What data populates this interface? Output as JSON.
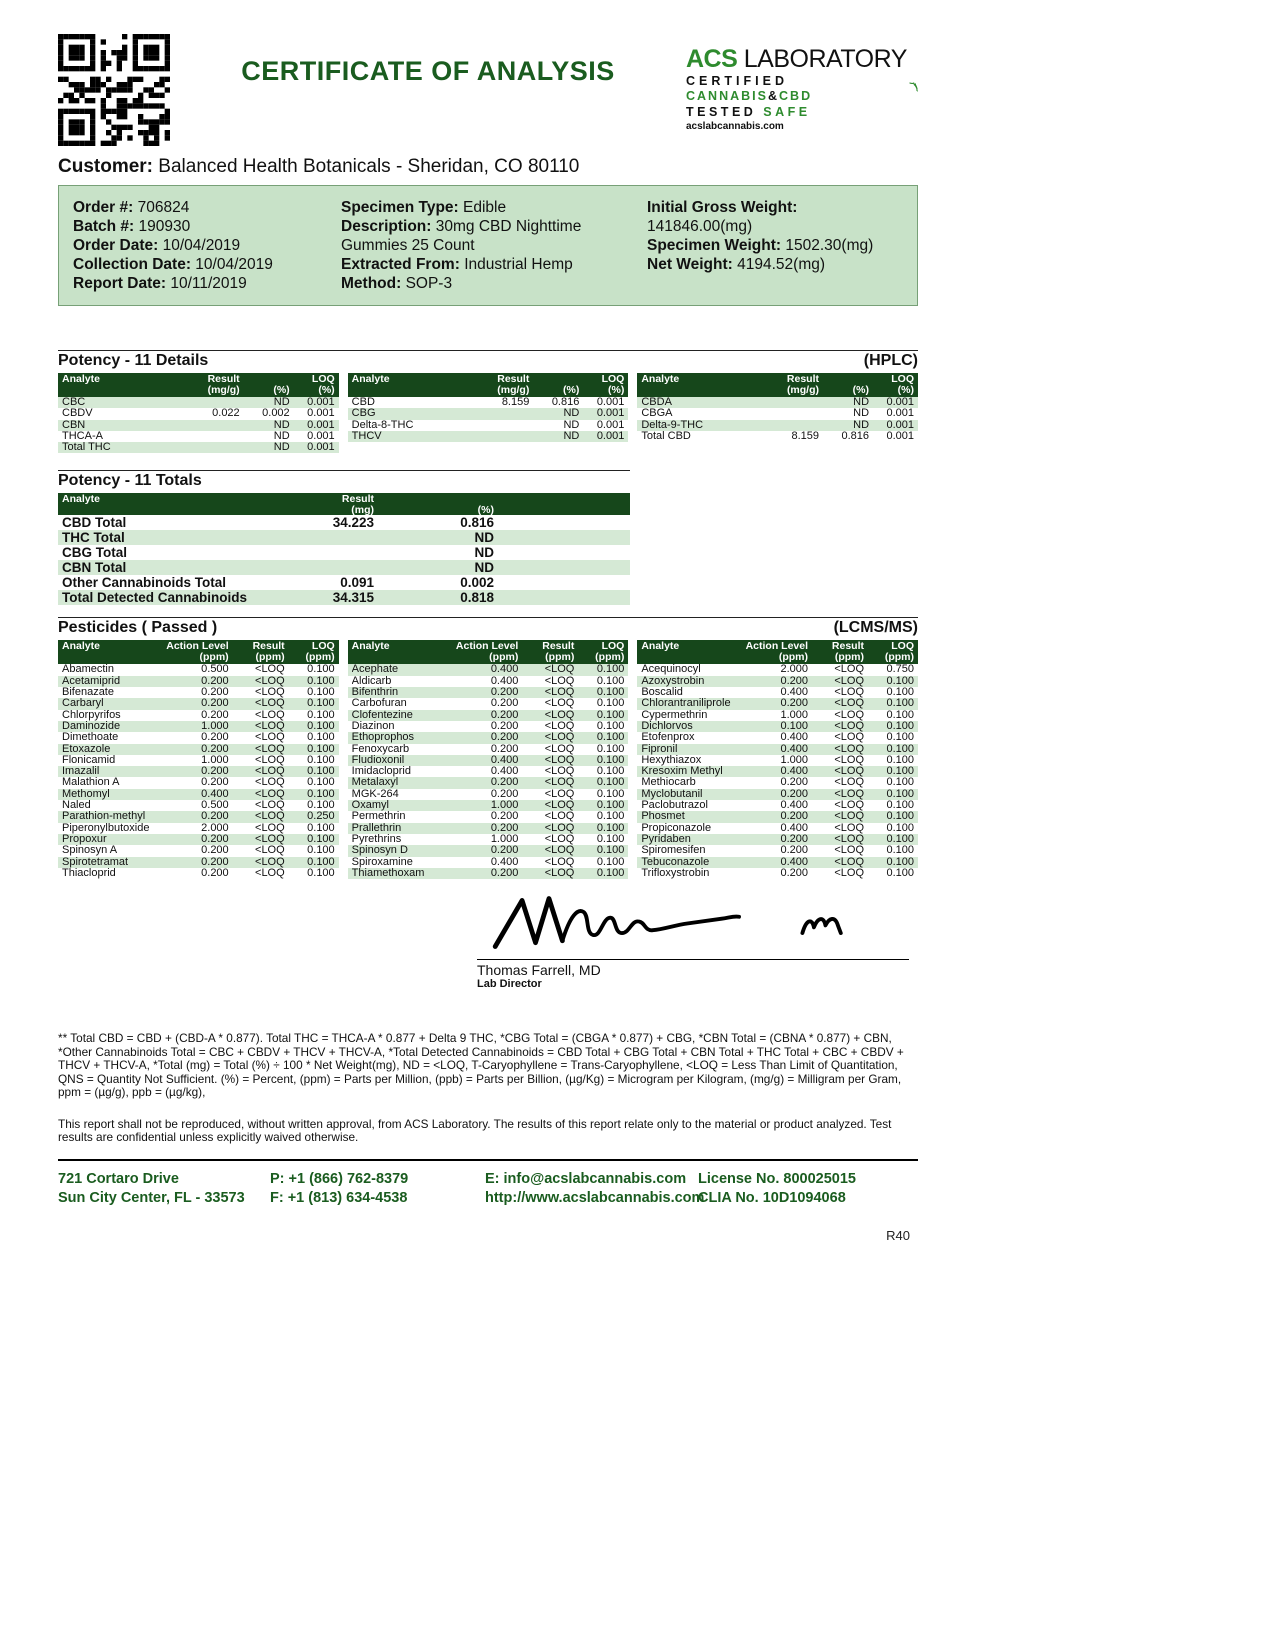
{
  "colors": {
    "accent_green": "#1a5c1f",
    "logo_green": "#2e8b2e",
    "table_header_green": "#16471b",
    "row_green": "#d5e9d5",
    "box_green": "#c8e2c8"
  },
  "header": {
    "title": "CERTIFICATE OF ANALYSIS"
  },
  "logo": {
    "acs": "ACS",
    "laboratory": "LABORATORY",
    "certified": "CERTIFIED",
    "cannabis": "CANNABIS",
    "amp": "&",
    "cbd": "CBD",
    "tested": "TESTED",
    "safe": "SAFE",
    "site": "acslabcannabis.com"
  },
  "customer": {
    "label": "Customer:",
    "value": "Balanced Health Botanicals  - Sheridan, CO 80110"
  },
  "order_info": {
    "columns": [
      [
        {
          "label": "Order #:",
          "value": "706824"
        },
        {
          "label": "Batch #:",
          "value": "190930"
        },
        {
          "label": "Order Date:",
          "value": "10/04/2019"
        },
        {
          "label": "Collection Date:",
          "value": "10/04/2019"
        },
        {
          "label": "Report Date:",
          "value": "10/11/2019"
        }
      ],
      [
        {
          "label": "Specimen Type:",
          "value": "Edible"
        },
        {
          "label": "Description:",
          "value": "30mg CBD Nighttime Gummies 25 Count"
        },
        {
          "label": "Extracted From:",
          "value": "Industrial Hemp"
        },
        {
          "label": "Method:",
          "value": "SOP-3"
        }
      ],
      [
        {
          "label": "Initial Gross Weight:",
          "value": "141846.00(mg)"
        },
        {
          "label": "Specimen Weight:",
          "value": "1502.30(mg)"
        },
        {
          "label": "Net Weight:",
          "value": "4194.52(mg)"
        }
      ]
    ]
  },
  "potency_details": {
    "title": "Potency - 11 Details",
    "method": "(HPLC)",
    "headers": [
      {
        "t": "Analyte"
      },
      {
        "t": "Result",
        "u": "(mg/g)"
      },
      {
        "t": "(%)"
      },
      {
        "t": "LOQ",
        "u": "(%)"
      }
    ],
    "columns": [
      {
        "first_shaded": true,
        "rows": [
          [
            "CBC",
            "",
            "ND",
            "0.001"
          ],
          [
            "CBDV",
            "0.022",
            "0.002",
            "0.001"
          ],
          [
            "CBN",
            "",
            "ND",
            "0.001"
          ],
          [
            "THCA-A",
            "",
            "ND",
            "0.001"
          ],
          [
            "Total THC",
            "",
            "ND",
            "0.001"
          ]
        ]
      },
      {
        "first_shaded": false,
        "rows": [
          [
            "CBD",
            "8.159",
            "0.816",
            "0.001"
          ],
          [
            "CBG",
            "",
            "ND",
            "0.001"
          ],
          [
            "Delta-8-THC",
            "",
            "ND",
            "0.001"
          ],
          [
            "THCV",
            "",
            "ND",
            "0.001"
          ]
        ]
      },
      {
        "first_shaded": true,
        "rows": [
          [
            "CBDA",
            "",
            "ND",
            "0.001"
          ],
          [
            "CBGA",
            "",
            "ND",
            "0.001"
          ],
          [
            "Delta-9-THC",
            "",
            "ND",
            "0.001"
          ],
          [
            "Total CBD",
            "8.159",
            "0.816",
            "0.001"
          ]
        ]
      }
    ]
  },
  "potency_totals": {
    "title": "Potency - 11 Totals",
    "headers": [
      {
        "t": "Analyte"
      },
      {
        "t": "Result",
        "u": "(mg)"
      },
      {
        "t": "(%)"
      },
      {
        "t": ""
      }
    ],
    "first_shaded": false,
    "rows": [
      [
        "CBD Total",
        "34.223",
        "0.816",
        ""
      ],
      [
        "THC Total",
        "",
        "ND",
        ""
      ],
      [
        "CBG Total",
        "",
        "ND",
        ""
      ],
      [
        "CBN Total",
        "",
        "ND",
        ""
      ],
      [
        "Other Cannabinoids Total",
        "0.091",
        "0.002",
        ""
      ],
      [
        "Total Detected Cannabinoids",
        "34.315",
        "0.818",
        ""
      ]
    ]
  },
  "pesticides": {
    "title": "Pesticides ( Passed )",
    "method": "(LCMS/MS)",
    "headers": [
      {
        "t": "Analyte"
      },
      {
        "t": "Action Level",
        "u": "(ppm)"
      },
      {
        "t": "Result",
        "u": "(ppm)"
      },
      {
        "t": "LOQ",
        "u": "(ppm)"
      }
    ],
    "columns": [
      {
        "first_shaded": false,
        "rows": [
          [
            "Abamectin",
            "0.500",
            "<LOQ",
            "0.100"
          ],
          [
            "Acetamiprid",
            "0.200",
            "<LOQ",
            "0.100"
          ],
          [
            "Bifenazate",
            "0.200",
            "<LOQ",
            "0.100"
          ],
          [
            "Carbaryl",
            "0.200",
            "<LOQ",
            "0.100"
          ],
          [
            "Chlorpyrifos",
            "0.200",
            "<LOQ",
            "0.100"
          ],
          [
            "Daminozide",
            "1.000",
            "<LOQ",
            "0.100"
          ],
          [
            "Dimethoate",
            "0.200",
            "<LOQ",
            "0.100"
          ],
          [
            "Etoxazole",
            "0.200",
            "<LOQ",
            "0.100"
          ],
          [
            "Flonicamid",
            "1.000",
            "<LOQ",
            "0.100"
          ],
          [
            "Imazalil",
            "0.200",
            "<LOQ",
            "0.100"
          ],
          [
            "Malathion A",
            "0.200",
            "<LOQ",
            "0.100"
          ],
          [
            "Methomyl",
            "0.400",
            "<LOQ",
            "0.100"
          ],
          [
            "Naled",
            "0.500",
            "<LOQ",
            "0.100"
          ],
          [
            "Parathion-methyl",
            "0.200",
            "<LOQ",
            "0.250"
          ],
          [
            "Piperonylbutoxide",
            "2.000",
            "<LOQ",
            "0.100"
          ],
          [
            "Propoxur",
            "0.200",
            "<LOQ",
            "0.100"
          ],
          [
            "Spinosyn A",
            "0.200",
            "<LOQ",
            "0.100"
          ],
          [
            "Spirotetramat",
            "0.200",
            "<LOQ",
            "0.100"
          ],
          [
            "Thiacloprid",
            "0.200",
            "<LOQ",
            "0.100"
          ]
        ]
      },
      {
        "first_shaded": true,
        "rows": [
          [
            "Acephate",
            "0.400",
            "<LOQ",
            "0.100"
          ],
          [
            "Aldicarb",
            "0.400",
            "<LOQ",
            "0.100"
          ],
          [
            "Bifenthrin",
            "0.200",
            "<LOQ",
            "0.100"
          ],
          [
            "Carbofuran",
            "0.200",
            "<LOQ",
            "0.100"
          ],
          [
            "Clofentezine",
            "0.200",
            "<LOQ",
            "0.100"
          ],
          [
            "Diazinon",
            "0.200",
            "<LOQ",
            "0.100"
          ],
          [
            "Ethoprophos",
            "0.200",
            "<LOQ",
            "0.100"
          ],
          [
            "Fenoxycarb",
            "0.200",
            "<LOQ",
            "0.100"
          ],
          [
            "Fludioxonil",
            "0.400",
            "<LOQ",
            "0.100"
          ],
          [
            "Imidacloprid",
            "0.400",
            "<LOQ",
            "0.100"
          ],
          [
            "Metalaxyl",
            "0.200",
            "<LOQ",
            "0.100"
          ],
          [
            "MGK-264",
            "0.200",
            "<LOQ",
            "0.100"
          ],
          [
            "Oxamyl",
            "1.000",
            "<LOQ",
            "0.100"
          ],
          [
            "Permethrin",
            "0.200",
            "<LOQ",
            "0.100"
          ],
          [
            "Prallethrin",
            "0.200",
            "<LOQ",
            "0.100"
          ],
          [
            "Pyrethrins",
            "1.000",
            "<LOQ",
            "0.100"
          ],
          [
            "Spinosyn D",
            "0.200",
            "<LOQ",
            "0.100"
          ],
          [
            "Spiroxamine",
            "0.400",
            "<LOQ",
            "0.100"
          ],
          [
            "Thiamethoxam",
            "0.200",
            "<LOQ",
            "0.100"
          ]
        ]
      },
      {
        "first_shaded": false,
        "rows": [
          [
            "Acequinocyl",
            "2.000",
            "<LOQ",
            "0.750"
          ],
          [
            "Azoxystrobin",
            "0.200",
            "<LOQ",
            "0.100"
          ],
          [
            "Boscalid",
            "0.400",
            "<LOQ",
            "0.100"
          ],
          [
            "Chlorantraniliprole",
            "0.200",
            "<LOQ",
            "0.100"
          ],
          [
            "Cypermethrin",
            "1.000",
            "<LOQ",
            "0.100"
          ],
          [
            "Dichlorvos",
            "0.100",
            "<LOQ",
            "0.100"
          ],
          [
            "Etofenprox",
            "0.400",
            "<LOQ",
            "0.100"
          ],
          [
            "Fipronil",
            "0.400",
            "<LOQ",
            "0.100"
          ],
          [
            "Hexythiazox",
            "1.000",
            "<LOQ",
            "0.100"
          ],
          [
            "Kresoxim Methyl",
            "0.400",
            "<LOQ",
            "0.100"
          ],
          [
            "Methiocarb",
            "0.200",
            "<LOQ",
            "0.100"
          ],
          [
            "Myclobutanil",
            "0.200",
            "<LOQ",
            "0.100"
          ],
          [
            "Paclobutrazol",
            "0.400",
            "<LOQ",
            "0.100"
          ],
          [
            "Phosmet",
            "0.200",
            "<LOQ",
            "0.100"
          ],
          [
            "Propiconazole",
            "0.400",
            "<LOQ",
            "0.100"
          ],
          [
            "Pyridaben",
            "0.200",
            "<LOQ",
            "0.100"
          ],
          [
            "Spiromesifen",
            "0.200",
            "<LOQ",
            "0.100"
          ],
          [
            "Tebuconazole",
            "0.400",
            "<LOQ",
            "0.100"
          ],
          [
            "Trifloxystrobin",
            "0.200",
            "<LOQ",
            "0.100"
          ]
        ]
      }
    ]
  },
  "signature": {
    "name": "Thomas Farrell, MD",
    "title": "Lab Director"
  },
  "footnotes": {
    "formula": "** Total CBD = CBD + (CBD-A * 0.877). Total THC = THCA-A * 0.877 + Delta 9 THC, *CBG Total = (CBGA * 0.877) + CBG, *CBN Total = (CBNA * 0.877) + CBN, *Other Cannabinoids Total = CBC + CBDV + THCV + THCV-A, *Total Detected Cannabinoids = CBD Total + CBG Total + CBN Total + THC Total + CBC + CBDV + THCV + THCV-A, *Total (mg) = Total (%) ÷ 100 * Net Weight(mg), ND = <LOQ, T-Caryophyllene = Trans-Caryophyllene, <LOQ = Less Than Limit of Quantitation, QNS = Quantity Not Sufficient. (%) = Percent, (ppm) = Parts per Million, (ppb) = Parts per Billion, (µg/Kg) = Microgram per Kilogram, (mg/g) = Milligram per Gram, ppm = (µg/g), ppb = (µg/kg),",
    "disclaimer": "This report shall not be reproduced, without written approval, from ACS Laboratory. The results of this report relate only to the material or product analyzed. Test results are confidential unless explicitly waived otherwise."
  },
  "footer": {
    "address1": "721 Cortaro Drive",
    "address2": "Sun City Center, FL - 33573",
    "phone": "P: +1 (866) 762-8379",
    "fax": "F: +1 (813) 634-4538",
    "email": "E: info@acslabcannabis.com",
    "web": "http://www.acslabcannabis.com",
    "license": "License No. 800025015",
    "clia": "CLIA No. 10D1094068"
  },
  "page_ref": "R40"
}
